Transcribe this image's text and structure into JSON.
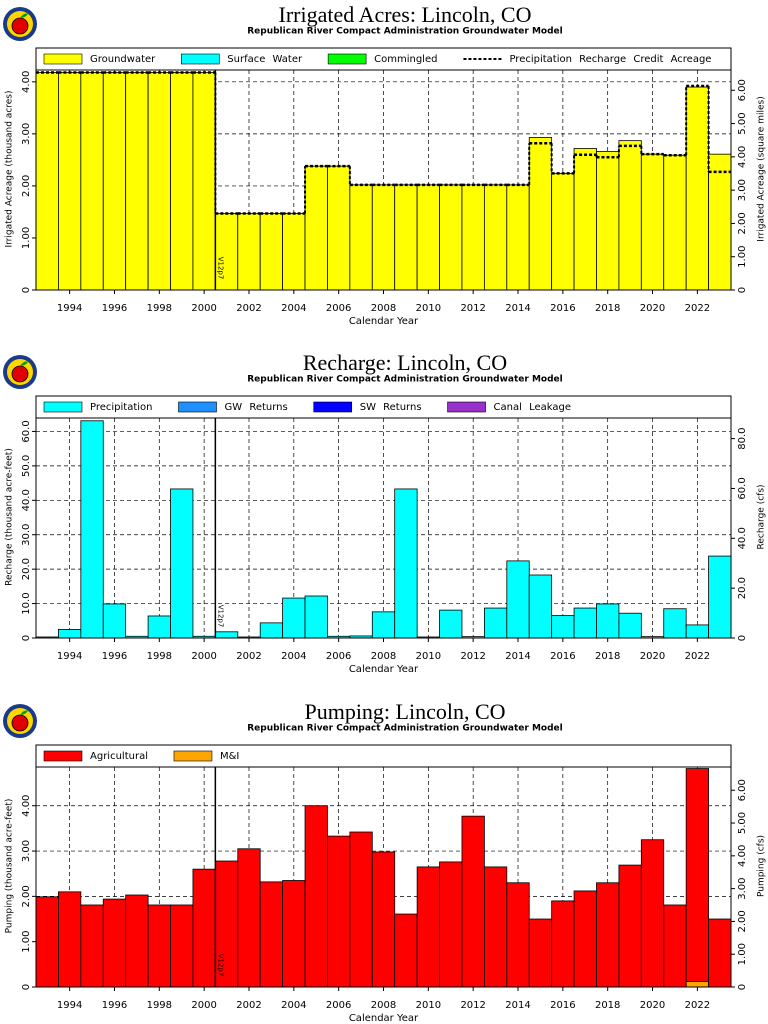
{
  "chart_data": [
    {
      "type": "bar",
      "title": "Irrigated Acres: Lincoln, CO",
      "subtitle": "Republican River Compact Administration Groundwater Model",
      "xlabel": "Calendar Year",
      "ylabel": "Irrigated Acreage (thousand acres)",
      "y2label": "Irrigated Acreage (square miles)",
      "x": [
        1993,
        1994,
        1995,
        1996,
        1997,
        1998,
        1999,
        2000,
        2001,
        2002,
        2003,
        2004,
        2005,
        2006,
        2007,
        2008,
        2009,
        2010,
        2011,
        2012,
        2013,
        2014,
        2015,
        2016,
        2017,
        2018,
        2019,
        2020,
        2021,
        2022,
        2023
      ],
      "xlim": [
        1992.5,
        2023.5
      ],
      "xticks": [
        1994,
        1996,
        1998,
        2000,
        2002,
        2004,
        2006,
        2008,
        2010,
        2012,
        2014,
        2016,
        2018,
        2020,
        2022
      ],
      "ylim": [
        0,
        4.65
      ],
      "yticks": [
        0,
        {
          "value": 1,
          "label": "1.00"
        },
        {
          "value": 2,
          "label": "2.00"
        },
        {
          "value": 3,
          "label": "3.00"
        },
        {
          "value": 4,
          "label": "4.00"
        }
      ],
      "y2lim": [
        0,
        7.27
      ],
      "y2ticks": [
        0,
        {
          "value": 1,
          "label": "1.00"
        },
        {
          "value": 2,
          "label": "2.00"
        },
        {
          "value": 3,
          "label": "3.00"
        },
        {
          "value": 4,
          "label": "4.00"
        },
        {
          "value": 5,
          "label": "5.00"
        },
        {
          "value": 6,
          "label": "6.00"
        }
      ],
      "grid": true,
      "annotations": [
        {
          "text": "V12p7",
          "x": 2000.5
        }
      ],
      "series": [
        {
          "name": "Groundwater",
          "color": "#ffff00",
          "values": [
            4.18,
            4.18,
            4.18,
            4.18,
            4.18,
            4.18,
            4.18,
            4.18,
            1.47,
            1.47,
            1.47,
            1.47,
            2.38,
            2.38,
            2.02,
            2.02,
            2.02,
            2.02,
            2.02,
            2.02,
            2.02,
            2.02,
            2.93,
            2.24,
            2.72,
            2.66,
            2.87,
            2.61,
            2.59,
            3.9,
            2.61
          ]
        },
        {
          "name": "Surface Water",
          "color": "#00ffff",
          "values": [
            0,
            0,
            0,
            0,
            0,
            0,
            0,
            0,
            0,
            0,
            0,
            0,
            0,
            0,
            0,
            0,
            0,
            0,
            0,
            0,
            0,
            0,
            0,
            0,
            0,
            0,
            0,
            0,
            0,
            0,
            0
          ]
        },
        {
          "name": "Commingled",
          "color": "#00ff00",
          "values": [
            0,
            0,
            0,
            0,
            0,
            0,
            0,
            0,
            0,
            0,
            0,
            0,
            0,
            0,
            0,
            0,
            0,
            0,
            0,
            0,
            0,
            0,
            0,
            0,
            0,
            0,
            0,
            0,
            0,
            0,
            0
          ]
        },
        {
          "name": "Precipitation Recharge Credit Acreage",
          "color": "#000000",
          "dashed": true,
          "values": [
            4.18,
            4.18,
            4.18,
            4.18,
            4.18,
            4.18,
            4.18,
            4.18,
            1.47,
            1.47,
            1.47,
            1.47,
            2.38,
            2.38,
            2.02,
            2.02,
            2.02,
            2.02,
            2.02,
            2.02,
            2.02,
            2.02,
            2.82,
            2.24,
            2.6,
            2.55,
            2.77,
            2.61,
            2.59,
            3.92,
            2.27
          ]
        }
      ]
    },
    {
      "type": "bar",
      "title": "Recharge: Lincoln, CO",
      "subtitle": "Republican River Compact Administration Groundwater Model",
      "xlabel": "Calendar Year",
      "ylabel": "Recharge (thousand acre-feet)",
      "y2label": "Recharge (cfs)",
      "x": [
        1993,
        1994,
        1995,
        1996,
        1997,
        1998,
        1999,
        2000,
        2001,
        2002,
        2003,
        2004,
        2005,
        2006,
        2007,
        2008,
        2009,
        2010,
        2011,
        2012,
        2013,
        2014,
        2015,
        2016,
        2017,
        2018,
        2019,
        2020,
        2021,
        2022,
        2023
      ],
      "xlim": [
        1992.5,
        2023.5
      ],
      "xticks": [
        1994,
        1996,
        1998,
        2000,
        2002,
        2004,
        2006,
        2008,
        2010,
        2012,
        2014,
        2016,
        2018,
        2020,
        2022
      ],
      "ylim": [
        0,
        70.3
      ],
      "yticks": [
        0,
        {
          "value": 10,
          "label": "10.0"
        },
        {
          "value": 20,
          "label": "20.0"
        },
        {
          "value": 30,
          "label": "30.0"
        },
        {
          "value": 40,
          "label": "40.0"
        },
        {
          "value": 50,
          "label": "50.0"
        },
        {
          "value": 60,
          "label": "60.0"
        }
      ],
      "y2lim": [
        0,
        97.1
      ],
      "y2ticks": [
        0,
        {
          "value": 20,
          "label": "20.0"
        },
        {
          "value": 40,
          "label": "40.0"
        },
        {
          "value": 60,
          "label": "60.0"
        },
        {
          "value": 80,
          "label": "80.0"
        }
      ],
      "grid": true,
      "annotations": [
        {
          "text": "V12p7",
          "x": 2000.5
        }
      ],
      "series": [
        {
          "name": "Precipitation",
          "color": "#00ffff",
          "values": [
            0.3,
            2.5,
            63.1,
            9.9,
            0.5,
            6.4,
            43.3,
            0.5,
            1.8,
            0.3,
            4.4,
            11.6,
            12.2,
            0.5,
            0.6,
            7.6,
            43.3,
            0.3,
            8.1,
            0.4,
            8.7,
            22.4,
            18.3,
            6.5,
            8.7,
            9.9,
            7.2,
            0.4,
            8.5,
            3.8,
            23.8
          ]
        },
        {
          "name": "GW Returns",
          "color": "#1e90ff",
          "values": [
            0,
            0,
            0,
            0,
            0,
            0,
            0,
            0,
            0,
            0,
            0,
            0,
            0,
            0,
            0,
            0,
            0,
            0,
            0,
            0,
            0,
            0,
            0,
            0,
            0,
            0,
            0,
            0,
            0,
            0,
            0
          ]
        },
        {
          "name": "SW Returns",
          "color": "#0000ff",
          "values": [
            0,
            0,
            0,
            0,
            0,
            0,
            0,
            0,
            0,
            0,
            0,
            0,
            0,
            0,
            0,
            0,
            0,
            0,
            0,
            0,
            0,
            0,
            0,
            0,
            0,
            0,
            0,
            0,
            0,
            0,
            0
          ]
        },
        {
          "name": "Canal Leakage",
          "color": "#9932cc",
          "values": [
            0,
            0,
            0,
            0,
            0,
            0,
            0,
            0,
            0,
            0,
            0,
            0,
            0,
            0,
            0,
            0,
            0,
            0,
            0,
            0,
            0,
            0,
            0,
            0,
            0,
            0,
            0,
            0,
            0,
            0,
            0
          ]
        }
      ]
    },
    {
      "type": "bar",
      "title": "Pumping: Lincoln, CO",
      "subtitle": "Republican River Compact Administration Groundwater Model",
      "xlabel": "Calendar Year",
      "ylabel": "Pumping (thousand acre-feet)",
      "y2label": "Pumping (cfs)",
      "x": [
        1993,
        1994,
        1995,
        1996,
        1997,
        1998,
        1999,
        2000,
        2001,
        2002,
        2003,
        2004,
        2005,
        2006,
        2007,
        2008,
        2009,
        2010,
        2011,
        2012,
        2013,
        2014,
        2015,
        2016,
        2017,
        2018,
        2019,
        2020,
        2021,
        2022,
        2023
      ],
      "xlim": [
        1992.5,
        2023.5
      ],
      "xticks": [
        1994,
        1996,
        1998,
        2000,
        2002,
        2004,
        2006,
        2008,
        2010,
        2012,
        2014,
        2016,
        2018,
        2020,
        2022
      ],
      "ylim": [
        0,
        5.34
      ],
      "yticks": [
        0,
        {
          "value": 1,
          "label": "1.00"
        },
        {
          "value": 2,
          "label": "2.00"
        },
        {
          "value": 3,
          "label": "3.00"
        },
        {
          "value": 4,
          "label": "4.00"
        }
      ],
      "y2lim": [
        0,
        7.38
      ],
      "y2ticks": [
        0,
        {
          "value": 1,
          "label": "1.00"
        },
        {
          "value": 2,
          "label": "2.00"
        },
        {
          "value": 3,
          "label": "3.00"
        },
        {
          "value": 4,
          "label": "4.00"
        },
        {
          "value": 5,
          "label": "5.00"
        },
        {
          "value": 6,
          "label": "6.00"
        }
      ],
      "grid": true,
      "annotations": [
        {
          "text": "V12p7",
          "x": 2000.5
        }
      ],
      "series": [
        {
          "name": "Agricultural",
          "color": "#ff0000",
          "values": [
            1.99,
            2.1,
            1.81,
            1.94,
            2.03,
            1.81,
            1.81,
            2.6,
            2.78,
            3.05,
            2.32,
            2.35,
            4.0,
            3.33,
            3.42,
            2.98,
            1.61,
            2.65,
            2.76,
            3.77,
            2.65,
            2.3,
            1.5,
            1.9,
            2.12,
            2.3,
            2.69,
            3.25,
            1.81,
            4.7,
            1.5
          ]
        },
        {
          "name": "M&I",
          "color": "#ffa500",
          "values": [
            0,
            0,
            0,
            0,
            0,
            0,
            0,
            0,
            0,
            0,
            0,
            0,
            0,
            0,
            0,
            0,
            0,
            0,
            0,
            0,
            0,
            0,
            0,
            0,
            0,
            0,
            0,
            0,
            0,
            0.12,
            0
          ]
        }
      ]
    }
  ]
}
